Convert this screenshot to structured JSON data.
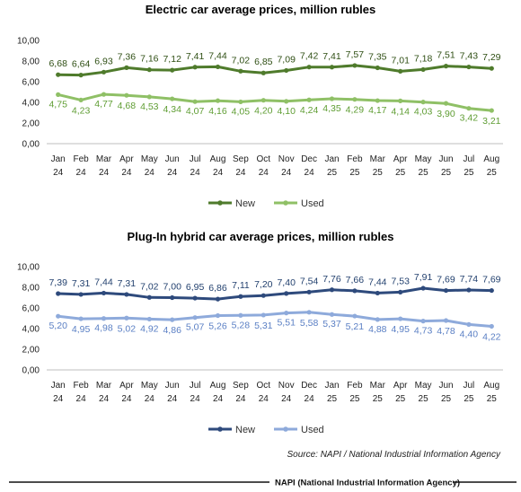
{
  "source": "Source: NAPI / National Industrial Information Agency",
  "footer": "NAPI (National Industrial Information Agency)",
  "chart_data": [
    {
      "type": "line",
      "title": "Electric car average prices, million rubles",
      "categories": [
        [
          "Jan",
          "24"
        ],
        [
          "Feb",
          "24"
        ],
        [
          "Mar",
          "24"
        ],
        [
          "Apr",
          "24"
        ],
        [
          "May",
          "24"
        ],
        [
          "Jun",
          "24"
        ],
        [
          "Jul",
          "24"
        ],
        [
          "Aug",
          "24"
        ],
        [
          "Sep",
          "24"
        ],
        [
          "Oct",
          "24"
        ],
        [
          "Nov",
          "24"
        ],
        [
          "Dec",
          "24"
        ],
        [
          "Jan",
          "25"
        ],
        [
          "Feb",
          "25"
        ],
        [
          "Mar",
          "25"
        ],
        [
          "Apr",
          "25"
        ],
        [
          "May",
          "25"
        ],
        [
          "Jun",
          "25"
        ],
        [
          "Jul",
          "25"
        ],
        [
          "Aug",
          "25"
        ]
      ],
      "ylim": [
        0,
        10
      ],
      "yticks": [
        "0,00",
        "2,00",
        "4,00",
        "6,00",
        "8,00",
        "10,00"
      ],
      "legend_position": "bottom",
      "series": [
        {
          "name": "New",
          "color": "#4f7b2c",
          "values": [
            6.68,
            6.64,
            6.93,
            7.36,
            7.16,
            7.12,
            7.41,
            7.44,
            7.02,
            6.85,
            7.09,
            7.42,
            7.41,
            7.57,
            7.35,
            7.01,
            7.18,
            7.51,
            7.43,
            7.29
          ],
          "labels": [
            "6,68",
            "6,64",
            "6,93",
            "7,36",
            "7,16",
            "7,12",
            "7,41",
            "7,44",
            "7,02",
            "6,85",
            "7,09",
            "7,42",
            "7,41",
            "7,57",
            "7,35",
            "7,01",
            "7,18",
            "7,51",
            "7,43",
            "7,29"
          ]
        },
        {
          "name": "Used",
          "color": "#8fc066",
          "values": [
            4.75,
            4.23,
            4.77,
            4.68,
            4.53,
            4.34,
            4.07,
            4.16,
            4.05,
            4.2,
            4.1,
            4.24,
            4.35,
            4.29,
            4.17,
            4.14,
            4.03,
            3.9,
            3.42,
            3.21
          ],
          "labels": [
            "4,75",
            "4,23",
            "4,77",
            "4,68",
            "4,53",
            "4,34",
            "4,07",
            "4,16",
            "4,05",
            "4,20",
            "4,10",
            "4,24",
            "4,35",
            "4,29",
            "4,17",
            "4,14",
            "4,03",
            "3,90",
            "3,42",
            "3,21"
          ]
        }
      ]
    },
    {
      "type": "line",
      "title": "Plug-In hybrid car average prices, million rubles",
      "categories": [
        [
          "Jan",
          "24"
        ],
        [
          "Feb",
          "24"
        ],
        [
          "Mar",
          "24"
        ],
        [
          "Apr",
          "24"
        ],
        [
          "May",
          "24"
        ],
        [
          "Jun",
          "24"
        ],
        [
          "Jul",
          "24"
        ],
        [
          "Aug",
          "24"
        ],
        [
          "Sep",
          "24"
        ],
        [
          "Oct",
          "24"
        ],
        [
          "Nov",
          "24"
        ],
        [
          "Dec",
          "24"
        ],
        [
          "Jan",
          "25"
        ],
        [
          "Feb",
          "25"
        ],
        [
          "Mar",
          "25"
        ],
        [
          "Apr",
          "25"
        ],
        [
          "May",
          "25"
        ],
        [
          "Jun",
          "25"
        ],
        [
          "Jul",
          "25"
        ],
        [
          "Aug",
          "25"
        ]
      ],
      "ylim": [
        0,
        10
      ],
      "yticks": [
        "0,00",
        "2,00",
        "4,00",
        "6,00",
        "8,00",
        "10,00"
      ],
      "legend_position": "bottom",
      "series": [
        {
          "name": "New",
          "color": "#2e4a7c",
          "values": [
            7.39,
            7.31,
            7.44,
            7.31,
            7.02,
            7.0,
            6.95,
            6.86,
            7.11,
            7.2,
            7.4,
            7.54,
            7.76,
            7.66,
            7.44,
            7.53,
            7.91,
            7.69,
            7.74,
            7.69
          ],
          "labels": [
            "7,39",
            "7,31",
            "7,44",
            "7,31",
            "7,02",
            "7,00",
            "6,95",
            "6,86",
            "7,11",
            "7,20",
            "7,40",
            "7,54",
            "7,76",
            "7,66",
            "7,44",
            "7,53",
            "7,91",
            "7,69",
            "7,74",
            "7,69"
          ]
        },
        {
          "name": "Used",
          "color": "#8eaadb",
          "values": [
            5.2,
            4.95,
            4.98,
            5.02,
            4.92,
            4.86,
            5.07,
            5.26,
            5.28,
            5.31,
            5.51,
            5.58,
            5.37,
            5.21,
            4.88,
            4.95,
            4.73,
            4.78,
            4.4,
            4.22
          ],
          "labels": [
            "5,20",
            "4,95",
            "4,98",
            "5,02",
            "4,92",
            "4,86",
            "5,07",
            "5,26",
            "5,28",
            "5,31",
            "5,51",
            "5,58",
            "5,37",
            "5,21",
            "4,88",
            "4,95",
            "4,73",
            "4,78",
            "4,40",
            "4,22"
          ]
        }
      ]
    }
  ]
}
